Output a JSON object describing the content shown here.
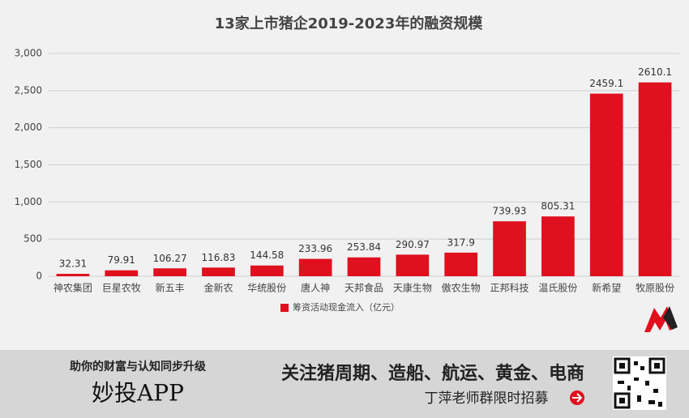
{
  "chart_data": {
    "type": "bar",
    "title": "13家上市猪企2019-2023年的融资规模",
    "categories": [
      "神农集团",
      "巨星农牧",
      "新五丰",
      "金新农",
      "华统股份",
      "唐人神",
      "天邦食品",
      "天康生物",
      "傲农生物",
      "正邦科技",
      "温氏股份",
      "新希望",
      "牧原股份"
    ],
    "series": [
      {
        "name": "筹资活动现金流入（亿元）",
        "color": "#e0101e",
        "values": [
          32.31,
          79.91,
          106.27,
          116.83,
          144.58,
          233.96,
          253.84,
          290.97,
          317.9,
          739.93,
          805.31,
          2459.1,
          2610.1
        ]
      }
    ],
    "ylim": [
      0,
      3000
    ],
    "yticks": [
      0,
      500,
      {
        "value": 1000,
        "label": "1,000"
      },
      {
        "value": 1500,
        "label": "1,500"
      },
      {
        "value": 2000,
        "label": "2,000"
      },
      {
        "value": 2500,
        "label": "2,500"
      },
      {
        "value": 3000,
        "label": "3,000"
      }
    ],
    "grid": true,
    "legend": "bottom"
  },
  "banner": {
    "slogan": "助你的财富与认知同步升级",
    "app": "妙投APP",
    "headline": "关注猪周期、造船、航运、黄金、电商",
    "recruit": "丁萍老师群限时招募"
  }
}
